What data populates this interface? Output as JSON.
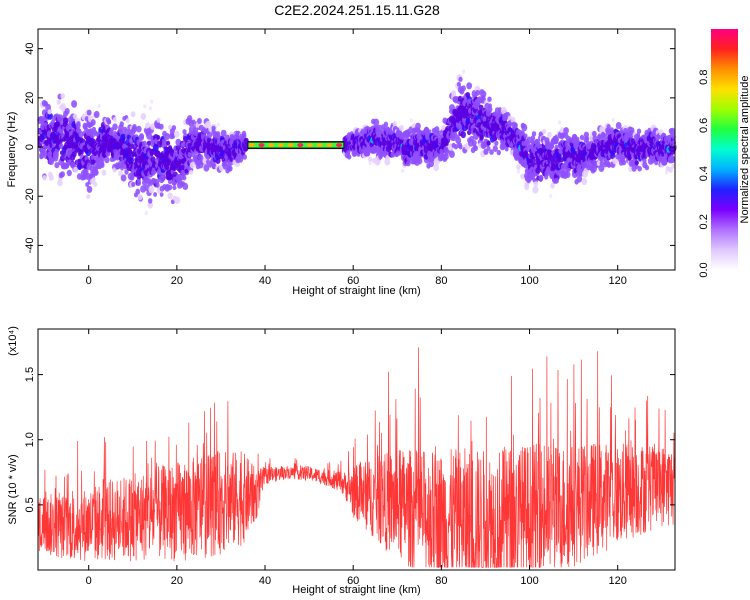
{
  "title": "C2E2.2024.251.15.11.G28",
  "chart_data": [
    {
      "type": "scatter",
      "panel": "top",
      "xlabel": "Height of straight line (km)",
      "ylabel": "Frequency (Hz)",
      "xlim": [
        -11.5,
        133
      ],
      "ylim": [
        -50,
        48
      ],
      "xticks": [
        0,
        20,
        40,
        60,
        80,
        100,
        120
      ],
      "yticks": [
        -40,
        -20,
        0,
        20,
        40
      ],
      "colorbar": {
        "label": "Normalized spectral amplitude",
        "range": [
          0,
          1
        ],
        "ticks": [
          "0.0",
          "0.2",
          "0.4",
          "0.6",
          "0.8"
        ],
        "colormap": [
          "#ffffff",
          "#e6d0ff",
          "#8f50ff",
          "#5a00e0",
          "#2a10ff",
          "#00c8ff",
          "#00ffa0",
          "#30ff00",
          "#b8ff00",
          "#ffd000",
          "#ff6000",
          "#ff0030",
          "#ff2080"
        ]
      },
      "series": [
        {
          "x": [
            -8,
            -4,
            0,
            4,
            8,
            12,
            16,
            20,
            24,
            28,
            32,
            35,
            60,
            64,
            68,
            72,
            76,
            80,
            84,
            88,
            92,
            96,
            100,
            104,
            108,
            112,
            116,
            120,
            124,
            128,
            132
          ],
          "y": [
            4,
            2,
            -3,
            3,
            -1,
            -6,
            -4,
            -8,
            2,
            0,
            -2,
            1,
            1,
            3,
            2,
            0,
            1,
            0,
            14,
            12,
            8,
            5,
            -5,
            -6,
            -3,
            -4,
            -1,
            2,
            -1,
            0,
            -1
          ],
          "spread_hz": [
            16,
            14,
            16,
            10,
            12,
            18,
            16,
            14,
            12,
            8,
            8,
            5,
            5,
            8,
            8,
            8,
            8,
            8,
            14,
            14,
            10,
            8,
            12,
            12,
            10,
            10,
            8,
            8,
            8,
            8,
            8
          ]
        }
      ],
      "band": {
        "x": [
          36,
          58
        ],
        "y": 0.8,
        "amplitude": 1.0
      }
    },
    {
      "type": "line",
      "panel": "bottom",
      "xlabel": "Height of straight line (km)",
      "ylabel": "SNR (10 * v/v)",
      "multiplier": "(x10⁴)",
      "xlim": [
        -11.5,
        133
      ],
      "ylim": [
        0,
        1.85
      ],
      "xticks": [
        0,
        20,
        40,
        60,
        80,
        100,
        120
      ],
      "yticks": [
        "0.5",
        "1.0",
        "1.5"
      ],
      "color": "#ff2020",
      "envelope": {
        "x": [
          -11,
          -5,
          0,
          5,
          10,
          15,
          20,
          25,
          30,
          35,
          38,
          40,
          45,
          50,
          55,
          58,
          60,
          65,
          70,
          75,
          80,
          85,
          90,
          95,
          100,
          105,
          110,
          115,
          120,
          125,
          130,
          133
        ],
        "base": [
          0.35,
          0.33,
          0.35,
          0.38,
          0.4,
          0.43,
          0.45,
          0.48,
          0.52,
          0.55,
          0.58,
          0.72,
          0.75,
          0.74,
          0.7,
          0.66,
          0.6,
          0.55,
          0.5,
          0.45,
          0.4,
          0.38,
          0.36,
          0.38,
          0.42,
          0.45,
          0.5,
          0.55,
          0.58,
          0.62,
          0.65,
          0.65
        ],
        "spread": [
          0.3,
          0.32,
          0.36,
          0.4,
          0.42,
          0.45,
          0.48,
          0.5,
          0.5,
          0.45,
          0.25,
          0.08,
          0.06,
          0.07,
          0.08,
          0.12,
          0.25,
          0.4,
          0.55,
          0.6,
          0.65,
          0.7,
          0.72,
          0.72,
          0.7,
          0.65,
          0.6,
          0.55,
          0.5,
          0.45,
          0.4,
          0.4
        ]
      }
    }
  ]
}
